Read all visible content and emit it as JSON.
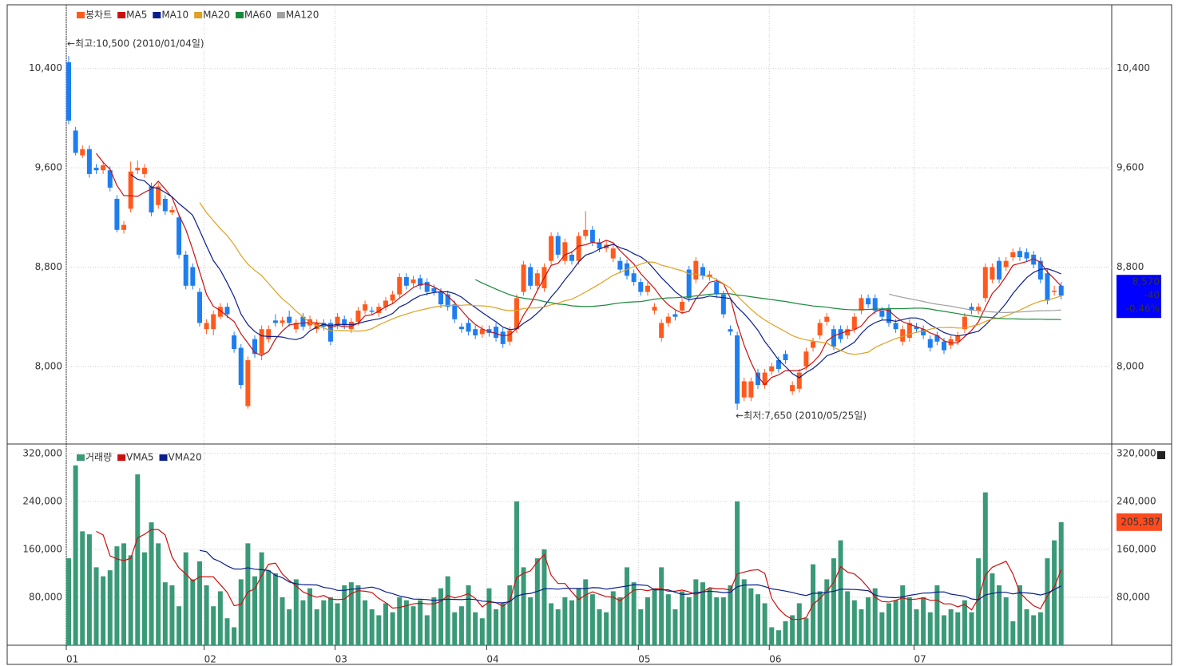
{
  "chart_data": {
    "type": "candlestick",
    "candle_name": "봉차트",
    "up_color": "#ff5a1e",
    "down_color": "#1e7ef0",
    "categories": [
      "01",
      null,
      null,
      null,
      null,
      null,
      null,
      null,
      null,
      null,
      null,
      null,
      null,
      null,
      null,
      null,
      null,
      null,
      null,
      null,
      "02",
      null,
      null,
      null,
      null,
      null,
      null,
      null,
      null,
      null,
      null,
      null,
      null,
      null,
      null,
      null,
      null,
      null,
      null,
      "03",
      null,
      null,
      null,
      null,
      null,
      null,
      null,
      null,
      null,
      null,
      null,
      null,
      null,
      null,
      null,
      null,
      null,
      null,
      null,
      null,
      null,
      "04",
      null,
      null,
      null,
      null,
      null,
      null,
      null,
      null,
      null,
      null,
      null,
      null,
      null,
      null,
      null,
      null,
      null,
      null,
      null,
      null,
      null,
      "05",
      null,
      null,
      null,
      null,
      null,
      null,
      null,
      null,
      null,
      null,
      null,
      null,
      null,
      null,
      null,
      null,
      null,
      null,
      "06",
      null,
      null,
      null,
      null,
      null,
      null,
      null,
      null,
      null,
      null,
      null,
      null,
      null,
      null,
      null,
      null,
      null,
      null,
      null,
      null,
      "07",
      null,
      null,
      null,
      null,
      null,
      null,
      null,
      null,
      null,
      null,
      null,
      null,
      null,
      null,
      null,
      null,
      null,
      null,
      null,
      null,
      null
    ],
    "ohlc": [
      [
        10450,
        10500,
        9950,
        9980
      ],
      [
        9900,
        9930,
        9700,
        9720
      ],
      [
        9700,
        9780,
        9680,
        9750
      ],
      [
        9750,
        9780,
        9520,
        9550
      ],
      [
        9600,
        9630,
        9550,
        9580
      ],
      [
        9580,
        9650,
        9550,
        9620
      ],
      [
        9580,
        9610,
        9410,
        9440
      ],
      [
        9350,
        9380,
        9080,
        9100
      ],
      [
        9100,
        9170,
        9070,
        9140
      ],
      [
        9270,
        9650,
        9240,
        9570
      ],
      [
        9580,
        9660,
        9550,
        9600
      ],
      [
        9550,
        9630,
        9520,
        9600
      ],
      [
        9450,
        9480,
        9210,
        9240
      ],
      [
        9300,
        9480,
        9270,
        9450
      ],
      [
        9350,
        9380,
        9220,
        9250
      ],
      [
        9240,
        9290,
        9220,
        9260
      ],
      [
        9200,
        9230,
        8870,
        8900
      ],
      [
        8900,
        8930,
        8620,
        8650
      ],
      [
        8800,
        8830,
        8620,
        8650
      ],
      [
        8600,
        8630,
        8320,
        8350
      ],
      [
        8300,
        8380,
        8260,
        8350
      ],
      [
        8300,
        8450,
        8250,
        8420
      ],
      [
        8400,
        8510,
        8380,
        8480
      ],
      [
        8480,
        8510,
        8390,
        8420
      ],
      [
        8250,
        8280,
        8110,
        8140
      ],
      [
        8150,
        8180,
        7820,
        7850
      ],
      [
        7680,
        8080,
        7660,
        8050
      ],
      [
        8220,
        8250,
        8070,
        8100
      ],
      [
        8100,
        8330,
        8050,
        8300
      ],
      [
        8220,
        8330,
        8190,
        8300
      ],
      [
        8370,
        8420,
        8320,
        8350
      ],
      [
        8350,
        8400,
        8320,
        8370
      ],
      [
        8400,
        8450,
        8320,
        8350
      ],
      [
        8300,
        8380,
        8270,
        8350
      ],
      [
        8400,
        8430,
        8290,
        8320
      ],
      [
        8330,
        8410,
        8300,
        8380
      ],
      [
        8300,
        8380,
        8270,
        8350
      ],
      [
        8350,
        8380,
        8290,
        8320
      ],
      [
        8350,
        8380,
        8170,
        8200
      ],
      [
        8330,
        8430,
        8300,
        8400
      ],
      [
        8380,
        8410,
        8300,
        8330
      ],
      [
        8300,
        8390,
        8270,
        8360
      ],
      [
        8360,
        8480,
        8330,
        8450
      ],
      [
        8450,
        8530,
        8420,
        8500
      ],
      [
        8450,
        8480,
        8420,
        8440
      ],
      [
        8430,
        8510,
        8400,
        8480
      ],
      [
        8480,
        8560,
        8450,
        8530
      ],
      [
        8530,
        8610,
        8500,
        8580
      ],
      [
        8580,
        8750,
        8550,
        8720
      ],
      [
        8720,
        8750,
        8620,
        8650
      ],
      [
        8670,
        8730,
        8640,
        8700
      ],
      [
        8710,
        8740,
        8620,
        8650
      ],
      [
        8680,
        8710,
        8570,
        8600
      ],
      [
        8630,
        8660,
        8570,
        8600
      ],
      [
        8600,
        8630,
        8470,
        8500
      ],
      [
        8580,
        8610,
        8450,
        8480
      ],
      [
        8500,
        8530,
        8350,
        8380
      ],
      [
        8320,
        8350,
        8270,
        8300
      ],
      [
        8350,
        8380,
        8250,
        8280
      ],
      [
        8300,
        8330,
        8220,
        8250
      ],
      [
        8260,
        8330,
        8230,
        8300
      ],
      [
        8300,
        8330,
        8240,
        8270
      ],
      [
        8320,
        8350,
        8200,
        8230
      ],
      [
        8280,
        8310,
        8150,
        8180
      ],
      [
        8200,
        8320,
        8170,
        8290
      ],
      [
        8300,
        8580,
        8270,
        8550
      ],
      [
        8600,
        8850,
        8570,
        8820
      ],
      [
        8800,
        8830,
        8620,
        8650
      ],
      [
        8650,
        8780,
        8620,
        8750
      ],
      [
        8630,
        8830,
        8600,
        8800
      ],
      [
        8850,
        9080,
        8820,
        9050
      ],
      [
        9050,
        9080,
        8870,
        8900
      ],
      [
        8850,
        9030,
        8820,
        9000
      ],
      [
        8900,
        8930,
        8820,
        8850
      ],
      [
        8850,
        9080,
        8820,
        9050
      ],
      [
        9050,
        9250,
        9020,
        9100
      ],
      [
        9100,
        9130,
        8970,
        9000
      ],
      [
        9000,
        9030,
        8920,
        8950
      ],
      [
        8950,
        9010,
        8920,
        8980
      ],
      [
        8870,
        8980,
        8840,
        8950
      ],
      [
        8850,
        8880,
        8750,
        8780
      ],
      [
        8830,
        8860,
        8700,
        8730
      ],
      [
        8750,
        8780,
        8650,
        8680
      ],
      [
        8680,
        8710,
        8570,
        8600
      ],
      [
        8600,
        8680,
        8570,
        8650
      ],
      [
        8450,
        8510,
        8420,
        8480
      ],
      [
        8230,
        8380,
        8200,
        8350
      ],
      [
        8350,
        8430,
        8320,
        8400
      ],
      [
        8420,
        8450,
        8370,
        8400
      ],
      [
        8450,
        8550,
        8420,
        8520
      ],
      [
        8780,
        8810,
        8520,
        8550
      ],
      [
        8700,
        8880,
        8670,
        8850
      ],
      [
        8800,
        8830,
        8700,
        8730
      ],
      [
        8720,
        8770,
        8690,
        8740
      ],
      [
        8680,
        8710,
        8550,
        8580
      ],
      [
        8580,
        8610,
        8390,
        8420
      ],
      [
        8300,
        8330,
        8250,
        8280
      ],
      [
        8250,
        8280,
        7650,
        7700
      ],
      [
        7750,
        7910,
        7720,
        7880
      ],
      [
        7750,
        7910,
        7720,
        7880
      ],
      [
        7950,
        7980,
        7820,
        7850
      ],
      [
        7850,
        7980,
        7820,
        7950
      ],
      [
        7960,
        8030,
        7930,
        8000
      ],
      [
        8050,
        8080,
        7950,
        7980
      ],
      [
        8100,
        8130,
        8020,
        8050
      ],
      [
        7800,
        7880,
        7770,
        7850
      ],
      [
        7820,
        7980,
        7790,
        7950
      ],
      [
        8000,
        8150,
        7970,
        8120
      ],
      [
        8150,
        8230,
        8120,
        8200
      ],
      [
        8250,
        8380,
        8220,
        8350
      ],
      [
        8360,
        8430,
        8330,
        8400
      ],
      [
        8300,
        8330,
        8130,
        8160
      ],
      [
        8300,
        8330,
        8190,
        8220
      ],
      [
        8250,
        8330,
        8220,
        8300
      ],
      [
        8300,
        8430,
        8270,
        8400
      ],
      [
        8450,
        8580,
        8420,
        8550
      ],
      [
        8550,
        8580,
        8470,
        8500
      ],
      [
        8550,
        8580,
        8420,
        8450
      ],
      [
        8450,
        8480,
        8370,
        8400
      ],
      [
        8470,
        8500,
        8320,
        8350
      ],
      [
        8350,
        8380,
        8270,
        8300
      ],
      [
        8200,
        8330,
        8170,
        8300
      ],
      [
        8230,
        8380,
        8200,
        8350
      ],
      [
        8320,
        8350,
        8270,
        8300
      ],
      [
        8300,
        8330,
        8220,
        8250
      ],
      [
        8220,
        8250,
        8120,
        8150
      ],
      [
        8250,
        8280,
        8170,
        8200
      ],
      [
        8200,
        8230,
        8100,
        8130
      ],
      [
        8170,
        8250,
        8140,
        8220
      ],
      [
        8200,
        8280,
        8170,
        8250
      ],
      [
        8300,
        8430,
        8270,
        8400
      ],
      [
        8480,
        8510,
        8420,
        8450
      ],
      [
        8450,
        8510,
        8420,
        8480
      ],
      [
        8550,
        8830,
        8520,
        8800
      ],
      [
        8700,
        8830,
        8670,
        8800
      ],
      [
        8850,
        8880,
        8670,
        8700
      ],
      [
        8800,
        8880,
        8770,
        8850
      ],
      [
        8880,
        8950,
        8850,
        8920
      ],
      [
        8930,
        8960,
        8850,
        8880
      ],
      [
        8920,
        8950,
        8840,
        8870
      ],
      [
        8900,
        8930,
        8790,
        8820
      ],
      [
        8850,
        8880,
        8670,
        8700
      ],
      [
        8750,
        8780,
        8500,
        8530
      ],
      [
        8600,
        8650,
        8570,
        8610
      ],
      [
        8650,
        8680,
        8540,
        8570
      ]
    ],
    "ma_lines": [
      {
        "name": "MA5",
        "color": "#cc1010"
      },
      {
        "name": "MA10",
        "color": "#0a1e8c"
      },
      {
        "name": "MA20",
        "color": "#e0a020"
      },
      {
        "name": "MA60",
        "color": "#1a8a3a"
      },
      {
        "name": "MA120",
        "color": "#a0a0a0"
      }
    ],
    "ylim": [
      7375,
      10900
    ],
    "yticks": [
      {
        "value": 8000,
        "label": "8,000"
      },
      {
        "value": 8800,
        "label": "8,800"
      },
      {
        "value": 9600,
        "label": "9,600"
      },
      {
        "value": 10400,
        "label": "10,400"
      }
    ],
    "high_note": "←최고:10,500 (2010/01/04일)",
    "low_note": "←최저:7,650 (2010/05/25일)",
    "last_price": {
      "price": "8,570",
      "change": "-40",
      "change_pct": "-0.46%"
    },
    "volume": {
      "name": "거래량",
      "color": "#3a9a78",
      "values": [
        145000,
        300000,
        190000,
        185000,
        130000,
        115000,
        125000,
        165000,
        170000,
        150000,
        285000,
        155000,
        205000,
        170000,
        105000,
        100000,
        65000,
        155000,
        110000,
        140000,
        100000,
        65000,
        90000,
        45000,
        30000,
        110000,
        170000,
        115000,
        155000,
        125000,
        120000,
        80000,
        60000,
        110000,
        75000,
        95000,
        60000,
        75000,
        80000,
        70000,
        100000,
        105000,
        100000,
        75000,
        60000,
        50000,
        70000,
        55000,
        80000,
        75000,
        65000,
        75000,
        50000,
        80000,
        95000,
        115000,
        55000,
        65000,
        100000,
        55000,
        45000,
        95000,
        60000,
        70000,
        100000,
        240000,
        130000,
        80000,
        145000,
        160000,
        70000,
        60000,
        80000,
        75000,
        95000,
        110000,
        85000,
        60000,
        55000,
        90000,
        80000,
        130000,
        105000,
        60000,
        80000,
        95000,
        130000,
        85000,
        60000,
        90000,
        80000,
        110000,
        105000,
        95000,
        80000,
        80000,
        100000,
        240000,
        110000,
        95000,
        85000,
        70000,
        30000,
        25000,
        40000,
        50000,
        70000,
        45000,
        135000,
        90000,
        110000,
        145000,
        175000,
        90000,
        75000,
        60000,
        80000,
        95000,
        55000,
        70000,
        75000,
        100000,
        80000,
        60000,
        80000,
        55000,
        100000,
        50000,
        60000,
        55000,
        75000,
        55000,
        145000,
        255000,
        120000,
        100000,
        80000,
        40000,
        100000,
        60000,
        50000,
        55000,
        145000,
        175000,
        205387
      ]
    },
    "volume_lines": [
      {
        "name": "VMA5",
        "color": "#cc1010"
      },
      {
        "name": "VMA20",
        "color": "#0a1e8c"
      }
    ],
    "volume_ylim": [
      0,
      333000
    ],
    "volume_yticks": [
      {
        "value": 80000,
        "label": "80,000"
      },
      {
        "value": 160000,
        "label": "160,000"
      },
      {
        "value": 240000,
        "label": "240,000"
      },
      {
        "value": 320000,
        "label": "320,000"
      }
    ],
    "last_volume_label": "205,387"
  }
}
